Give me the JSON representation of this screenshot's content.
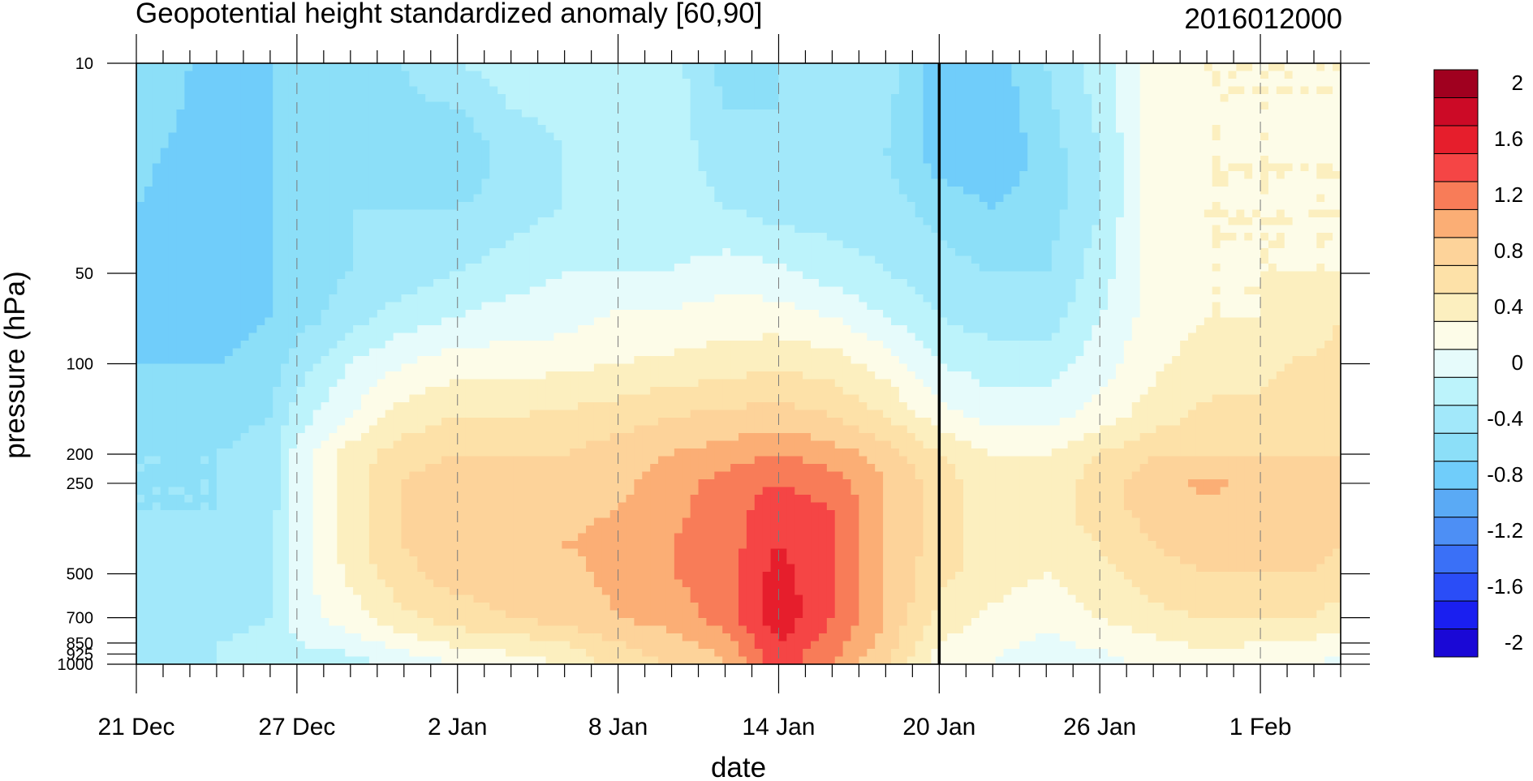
{
  "chart_data": {
    "type": "heatmap",
    "title": "Geopotential height standardized anomaly [60,90]",
    "date_label": "2016012000",
    "xlabel": "date",
    "ylabel": "pressure (hPa)",
    "y_scale": "log",
    "y_reversed": true,
    "x_ticks": [
      "21 Dec",
      "27 Dec",
      "2 Jan",
      "8 Jan",
      "14 Jan",
      "20 Jan",
      "26 Jan",
      "1 Feb"
    ],
    "x_tick_days": [
      0,
      6,
      12,
      18,
      24,
      30,
      36,
      42
    ],
    "x_range_days": [
      0,
      45
    ],
    "y_ticks": [
      10,
      50,
      100,
      200,
      250,
      500,
      700,
      850,
      925,
      1000
    ],
    "y_tick_labels": [
      "10",
      "50",
      "100",
      "200",
      "250",
      "500",
      "700",
      "850",
      "925",
      "1000"
    ],
    "y_range": [
      10,
      1000
    ],
    "current_day_marker": "20 Jan",
    "levels": [
      -2,
      -1.8,
      -1.6,
      -1.4,
      -1.2,
      -1,
      -0.8,
      -0.6,
      -0.4,
      -0.2,
      0,
      0.2,
      0.4,
      0.6,
      0.8,
      1,
      1.2,
      1.4,
      1.6,
      1.8,
      2
    ],
    "colorbar_labels": [
      "2",
      "1.6",
      "1.2",
      "0.8",
      "0.4",
      "0",
      "-0.4",
      "-0.8",
      "-1.2",
      "-1.6",
      "-2"
    ],
    "colorbar_label_values": [
      2,
      1.6,
      1.2,
      0.8,
      0.4,
      0,
      -0.4,
      -0.8,
      -1.2,
      -1.6,
      -2
    ],
    "colors": [
      "#1a08d6",
      "#1a1ff0",
      "#2a4df7",
      "#3a70f7",
      "#4d8ff5",
      "#5aaaf5",
      "#70cdfa",
      "#8cdff8",
      "#a2e8fa",
      "#bcf3fb",
      "#e6fbfb",
      "#fdfce8",
      "#fcefbf",
      "#fde1a8",
      "#fdd39a",
      "#fbae75",
      "#f87c58",
      "#f54545",
      "#e61e2c",
      "#cc0a26",
      "#a0001f"
    ],
    "times": [
      0,
      1,
      3,
      5,
      6,
      8,
      10,
      12,
      14,
      16,
      18,
      20,
      22,
      24,
      26,
      28,
      30,
      32,
      34,
      36,
      38,
      40,
      42,
      44,
      45
    ],
    "pressures": [
      10,
      20,
      30,
      50,
      70,
      100,
      150,
      200,
      250,
      300,
      400,
      500,
      700,
      850,
      1000
    ],
    "values": [
      [
        -0.6,
        -0.7,
        -0.9,
        -0.8,
        -0.7,
        -0.6,
        -0.6,
        -0.4,
        -0.3,
        -0.3,
        -0.3,
        -0.3,
        -0.7,
        -0.6,
        -0.4,
        -0.5,
        -0.9,
        -0.9,
        -0.6,
        -0.3,
        0.1,
        0.2,
        0.2,
        0.2,
        0.2
      ],
      [
        -0.7,
        -0.8,
        -0.9,
        -0.8,
        -0.7,
        -0.6,
        -0.7,
        -0.8,
        -0.5,
        -0.4,
        -0.3,
        -0.3,
        -0.5,
        -0.6,
        -0.5,
        -0.6,
        -0.9,
        -1.0,
        -0.7,
        -0.4,
        0.1,
        0.2,
        0.2,
        0.2,
        0.2
      ],
      [
        -0.8,
        -0.9,
        -0.9,
        -0.8,
        -0.7,
        -0.6,
        -0.6,
        -0.6,
        -0.5,
        -0.4,
        -0.3,
        -0.3,
        -0.4,
        -0.5,
        -0.5,
        -0.5,
        -0.7,
        -0.8,
        -0.7,
        -0.4,
        0.1,
        0.2,
        0.2,
        0.2,
        0.2
      ],
      [
        -0.8,
        -0.9,
        -0.9,
        -0.8,
        -0.7,
        -0.6,
        -0.5,
        -0.4,
        -0.3,
        -0.2,
        -0.2,
        -0.2,
        -0.1,
        -0.15,
        -0.3,
        -0.4,
        -0.5,
        -0.6,
        -0.6,
        -0.3,
        0.1,
        0.2,
        0.2,
        0.2,
        0.2
      ],
      [
        -0.8,
        -0.9,
        -0.9,
        -0.8,
        -0.7,
        -0.5,
        -0.3,
        -0.2,
        -0.1,
        -0.1,
        0.05,
        0.05,
        0.1,
        0.1,
        0.0,
        -0.2,
        -0.4,
        -0.5,
        -0.5,
        -0.2,
        0.1,
        0.2,
        0.2,
        0.25,
        0.4
      ],
      [
        -0.8,
        -0.8,
        -0.8,
        -0.7,
        -0.5,
        -0.2,
        0.0,
        0.1,
        0.1,
        0.15,
        0.2,
        0.25,
        0.3,
        0.35,
        0.3,
        0.1,
        -0.2,
        -0.3,
        -0.3,
        -0.1,
        0.15,
        0.3,
        0.35,
        0.45,
        0.5
      ],
      [
        -0.7,
        -0.7,
        -0.7,
        -0.6,
        -0.3,
        0.0,
        0.3,
        0.4,
        0.4,
        0.45,
        0.5,
        0.6,
        0.65,
        0.7,
        0.6,
        0.4,
        0.1,
        -0.1,
        -0.1,
        0.1,
        0.3,
        0.45,
        0.45,
        0.5,
        0.5
      ],
      [
        -0.6,
        -0.6,
        -0.6,
        -0.5,
        -0.1,
        0.3,
        0.5,
        0.6,
        0.6,
        0.6,
        0.7,
        0.8,
        0.9,
        1.0,
        0.9,
        0.7,
        0.4,
        0.2,
        0.2,
        0.4,
        0.6,
        0.6,
        0.6,
        0.6,
        0.6
      ],
      [
        -0.6,
        -0.6,
        -0.6,
        -0.5,
        -0.1,
        0.3,
        0.6,
        0.8,
        0.75,
        0.7,
        0.75,
        0.9,
        1.1,
        1.2,
        1.1,
        0.8,
        0.5,
        0.3,
        0.3,
        0.5,
        0.7,
        0.85,
        0.7,
        0.65,
        0.6
      ],
      [
        -0.6,
        -0.6,
        -0.6,
        -0.5,
        -0.1,
        0.3,
        0.6,
        0.8,
        0.8,
        0.75,
        0.8,
        0.95,
        1.1,
        1.3,
        1.2,
        0.8,
        0.5,
        0.3,
        0.3,
        0.5,
        0.7,
        0.75,
        0.75,
        0.7,
        0.65
      ],
      [
        -0.5,
        -0.5,
        -0.5,
        -0.45,
        -0.1,
        0.3,
        0.6,
        0.75,
        0.8,
        0.8,
        0.85,
        1.0,
        1.1,
        1.4,
        1.2,
        0.8,
        0.5,
        0.3,
        0.3,
        0.4,
        0.6,
        0.7,
        0.7,
        0.7,
        0.6
      ],
      [
        -0.5,
        -0.5,
        -0.5,
        -0.45,
        -0.1,
        0.25,
        0.55,
        0.7,
        0.7,
        0.75,
        0.85,
        1.0,
        1.1,
        1.5,
        1.2,
        0.8,
        0.45,
        0.3,
        0.2,
        0.35,
        0.5,
        0.6,
        0.6,
        0.6,
        0.5
      ],
      [
        -0.5,
        -0.5,
        -0.45,
        -0.4,
        -0.1,
        0.1,
        0.35,
        0.5,
        0.6,
        0.7,
        0.8,
        0.9,
        1.1,
        1.55,
        1.2,
        0.8,
        0.35,
        0.15,
        0.05,
        0.2,
        0.35,
        0.4,
        0.4,
        0.4,
        0.3
      ],
      [
        -0.5,
        -0.45,
        -0.4,
        -0.35,
        -0.2,
        -0.1,
        0.1,
        0.25,
        0.3,
        0.4,
        0.6,
        0.7,
        0.9,
        1.4,
        1.1,
        0.7,
        0.2,
        0.05,
        -0.05,
        0.05,
        0.15,
        0.25,
        0.2,
        0.15,
        0.1
      ],
      [
        -0.5,
        -0.45,
        -0.4,
        -0.4,
        -0.3,
        -0.3,
        -0.15,
        0.0,
        0.1,
        0.2,
        0.5,
        0.6,
        0.8,
        1.3,
        1.0,
        0.6,
        0.1,
        0.0,
        -0.1,
        -0.1,
        0.05,
        0.1,
        0.05,
        0.0,
        -0.05
      ]
    ]
  }
}
